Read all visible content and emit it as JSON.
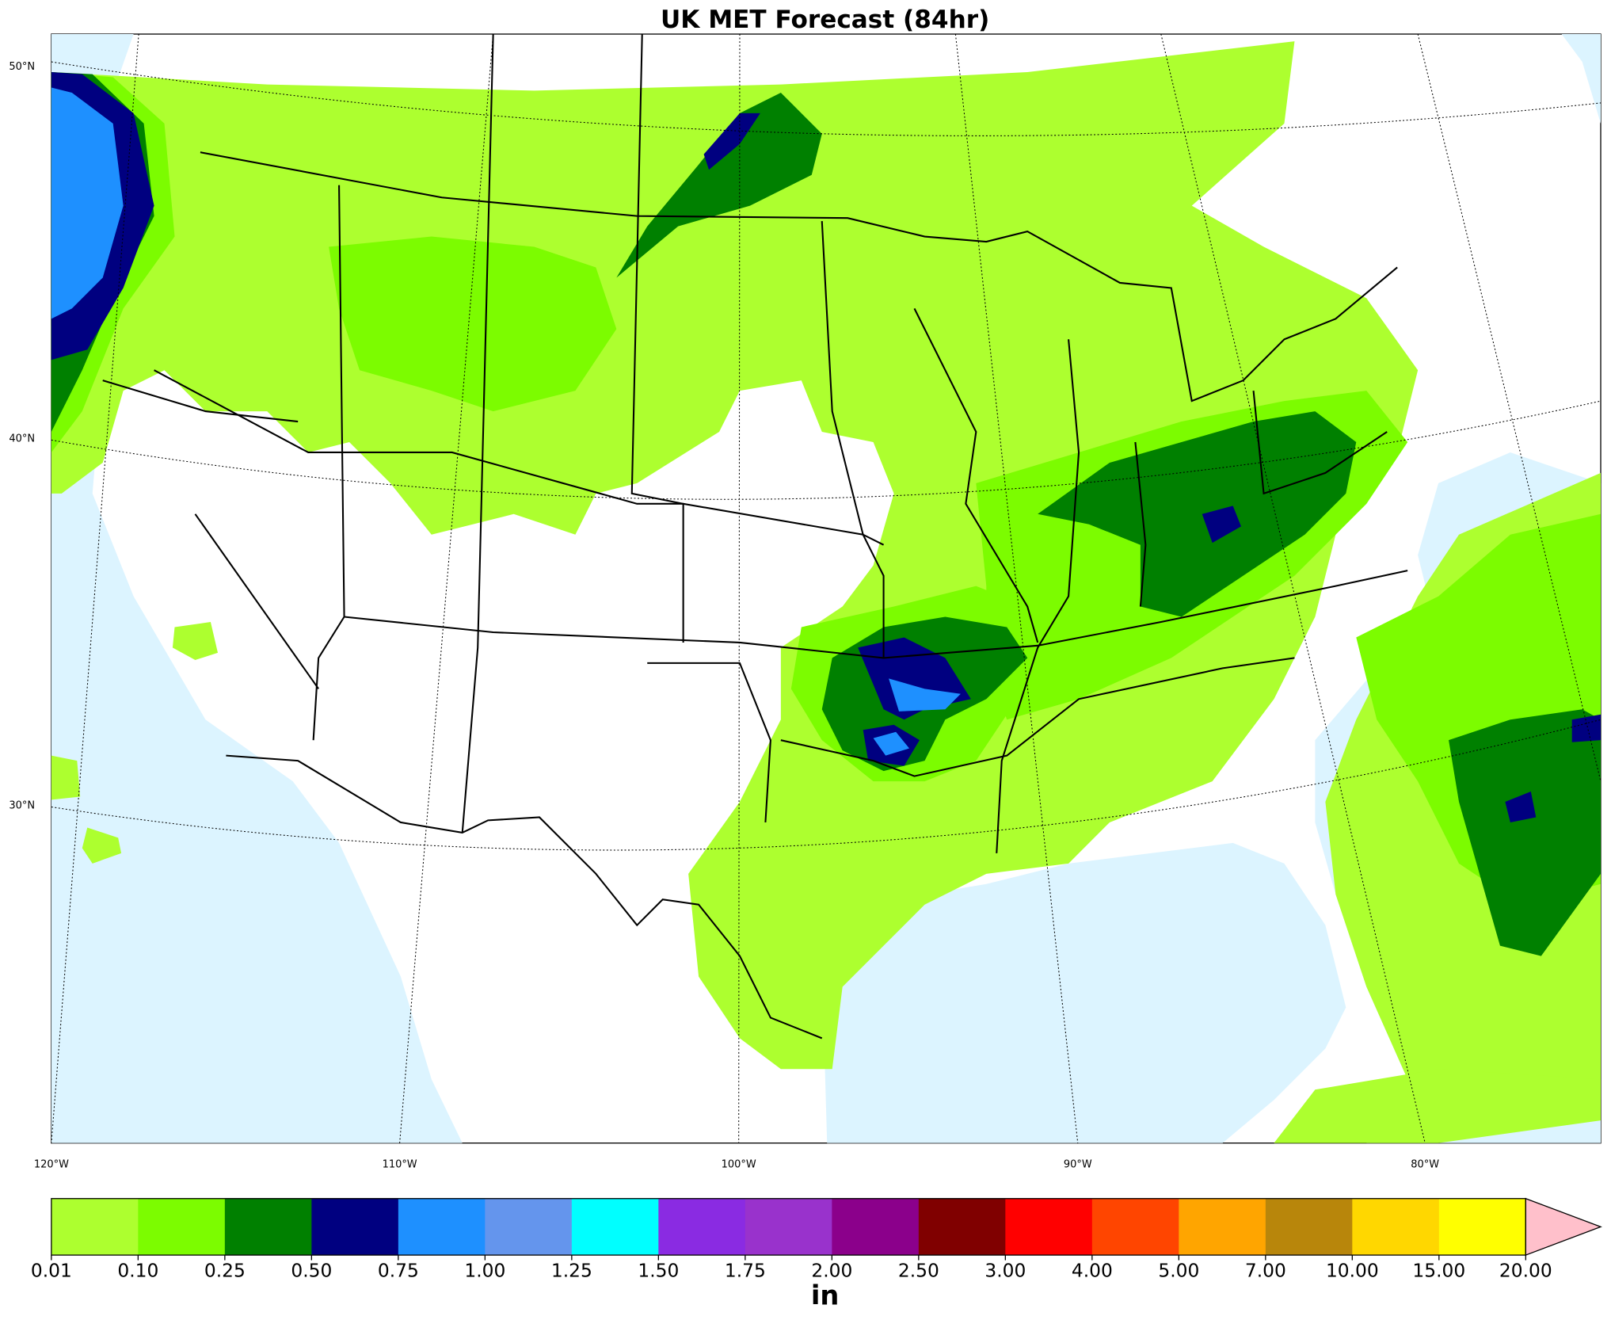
{
  "map": {
    "title": "UK MET Forecast (84hr)",
    "lat_labels": [
      "50°N",
      "40°N",
      "30°N"
    ],
    "lon_labels": [
      "120°W",
      "110°W",
      "100°W",
      "90°W",
      "80°W"
    ]
  },
  "colorbar": {
    "unit": "in",
    "levels": [
      {
        "value": 0.01,
        "label": "0.01"
      },
      {
        "value": 0.1,
        "label": "0.10"
      },
      {
        "value": 0.25,
        "label": "0.25"
      },
      {
        "value": 0.5,
        "label": "0.50"
      },
      {
        "value": 0.75,
        "label": "0.75"
      },
      {
        "value": 1,
        "label": "1.00"
      },
      {
        "value": 1.25,
        "label": "1.25"
      },
      {
        "value": 1.5,
        "label": "1.50"
      },
      {
        "value": 1.75,
        "label": "1.75"
      },
      {
        "value": 2,
        "label": "2.00"
      },
      {
        "value": 2.5,
        "label": "2.50"
      },
      {
        "value": 3,
        "label": "3.00"
      },
      {
        "value": 4,
        "label": "4.00"
      },
      {
        "value": 5,
        "label": "5.00"
      },
      {
        "value": 7,
        "label": "7.00"
      },
      {
        "value": 10,
        "label": "10.00"
      },
      {
        "value": 15,
        "label": "15.00"
      },
      {
        "value": 20,
        "label": "20.00"
      }
    ],
    "colors": [
      "#adff2f",
      "#7cfc00",
      "#008000",
      "#000080",
      "#1e90ff",
      "#6495ed",
      "#00ffff",
      "#8a2be2",
      "#9932cc",
      "#8b008b",
      "#800000",
      "#ff0000",
      "#ff4500",
      "#ffa500",
      "#b8860b",
      "#ffd700",
      "#ffff00"
    ],
    "extend_color": "#ffc0cb"
  }
}
